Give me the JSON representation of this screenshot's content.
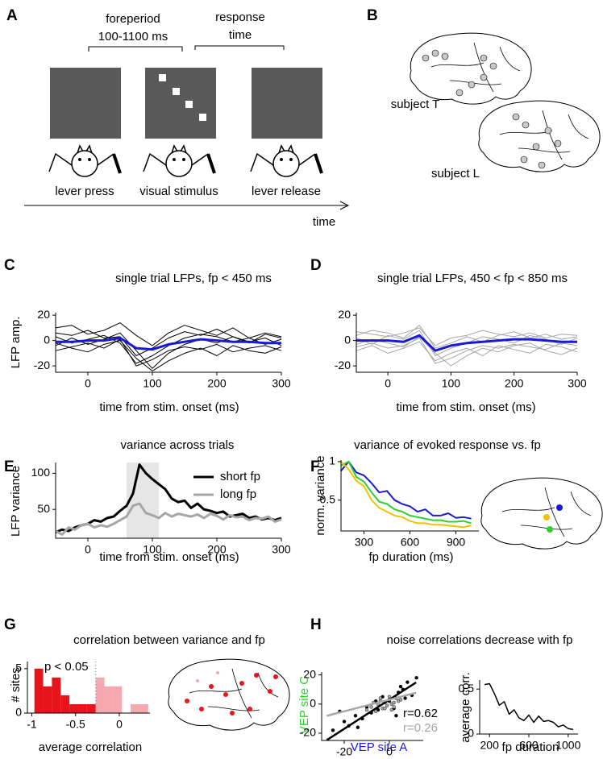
{
  "schematic": {
    "label": "A",
    "foreperiod": "foreperiod",
    "foreperiod_range": "100-1100 ms",
    "response_1": "response",
    "response_2": "time",
    "events": [
      "lever press",
      "visual stimulus",
      "lever release"
    ],
    "axis": "time"
  },
  "brain_maps": {
    "label": "B",
    "subjects": [
      "subject T",
      "subject L"
    ]
  },
  "chart_data": [
    {
      "type": "line",
      "label": "C",
      "title": "single trial LFPs, fp < 450 ms",
      "xlabel": "time from stim. onset (ms)",
      "ylabel": "LFP amp.",
      "x": [
        -50,
        -25,
        0,
        25,
        50,
        75,
        100,
        125,
        150,
        175,
        200,
        225,
        250,
        275,
        300
      ],
      "series": [
        {
          "color": "#000000",
          "width": 1,
          "values": [
            3,
            -2,
            1,
            4,
            -2,
            -18,
            -12,
            -4,
            2,
            5,
            3,
            -1,
            2,
            -3,
            1
          ]
        },
        {
          "color": "#000000",
          "width": 1,
          "values": [
            -4,
            2,
            -3,
            1,
            6,
            -8,
            -22,
            -10,
            -3,
            1,
            -2,
            3,
            -1,
            2,
            -4
          ]
        },
        {
          "color": "#000000",
          "width": 1,
          "values": [
            6,
            4,
            8,
            2,
            3,
            -12,
            -6,
            2,
            7,
            4,
            9,
            3,
            -2,
            5,
            2
          ]
        },
        {
          "color": "#000000",
          "width": 1,
          "values": [
            -8,
            -5,
            -2,
            -6,
            1,
            -20,
            -15,
            -8,
            -5,
            -7,
            -3,
            -9,
            -6,
            -4,
            -8
          ]
        },
        {
          "color": "#000000",
          "width": 1,
          "values": [
            10,
            12,
            5,
            8,
            14,
            4,
            -4,
            6,
            12,
            8,
            4,
            10,
            2,
            6,
            3
          ]
        },
        {
          "color": "#000000",
          "width": 1,
          "values": [
            -2,
            -6,
            -9,
            -3,
            0,
            -14,
            -24,
            -16,
            -10,
            -6,
            -12,
            -4,
            -8,
            -10,
            -5
          ]
        },
        {
          "color": "#1a1ad6",
          "width": 3,
          "values": [
            -1,
            -1,
            0,
            0,
            2,
            -6,
            -7,
            -3,
            -1,
            1,
            0,
            -1,
            -1,
            -2,
            -2
          ]
        }
      ],
      "xlim": [
        -50,
        300
      ],
      "ylim": [
        -25,
        22
      ],
      "xticks": [
        0,
        100,
        200,
        300
      ],
      "yticks": [
        -20,
        0,
        20
      ]
    },
    {
      "type": "line",
      "label": "D",
      "title": "single trial LFPs, 450 < fp < 850 ms",
      "xlabel": "time from stim. onset (ms)",
      "x": [
        -50,
        -25,
        0,
        25,
        50,
        75,
        100,
        125,
        150,
        175,
        200,
        225,
        250,
        275,
        300
      ],
      "series": [
        {
          "color": "#a6a6a6",
          "width": 1,
          "values": [
            2,
            -3,
            4,
            1,
            8,
            -12,
            -6,
            -2,
            3,
            1,
            -2,
            4,
            1,
            -3,
            2
          ]
        },
        {
          "color": "#a6a6a6",
          "width": 1,
          "values": [
            -5,
            -2,
            -6,
            -4,
            2,
            -18,
            -14,
            -8,
            -4,
            -6,
            -3,
            -5,
            -7,
            -2,
            -4
          ]
        },
        {
          "color": "#a6a6a6",
          "width": 1,
          "values": [
            7,
            5,
            3,
            6,
            10,
            -4,
            2,
            4,
            8,
            5,
            3,
            6,
            2,
            5,
            4
          ]
        },
        {
          "color": "#a6a6a6",
          "width": 1,
          "values": [
            -3,
            1,
            -2,
            -5,
            3,
            -10,
            -20,
            -12,
            -6,
            -9,
            -4,
            -2,
            -8,
            -11,
            -6
          ]
        },
        {
          "color": "#a6a6a6",
          "width": 1,
          "values": [
            4,
            8,
            6,
            2,
            12,
            -6,
            -2,
            3,
            -1,
            4,
            7,
            2,
            5,
            1,
            3
          ]
        },
        {
          "color": "#a6a6a6",
          "width": 1,
          "values": [
            -8,
            -4,
            -10,
            -6,
            -1,
            -16,
            -10,
            -6,
            -12,
            -4,
            -7,
            -10,
            -3,
            -5,
            -9
          ]
        },
        {
          "color": "#1a1ad6",
          "width": 3,
          "values": [
            0,
            0,
            0,
            -1,
            4,
            -8,
            -4,
            -2,
            -1,
            0,
            1,
            1,
            0,
            -1,
            -1
          ]
        }
      ],
      "xlim": [
        -50,
        300
      ],
      "ylim": [
        -25,
        22
      ],
      "xticks": [
        0,
        100,
        200,
        300
      ],
      "yticks": [
        -20,
        0,
        20
      ]
    },
    {
      "type": "line",
      "label": "E",
      "title": "variance across trials",
      "xlabel": "time from stim. onset (ms)",
      "ylabel": "LFP variance",
      "x": [
        -50,
        -40,
        -30,
        -20,
        -10,
        0,
        10,
        20,
        30,
        40,
        50,
        60,
        70,
        80,
        90,
        100,
        110,
        120,
        130,
        140,
        150,
        160,
        170,
        180,
        190,
        200,
        210,
        220,
        230,
        240,
        250,
        260,
        270,
        280,
        290,
        300
      ],
      "series": [
        {
          "name": "short fp",
          "color": "#000000",
          "width": 3,
          "values": [
            18,
            22,
            20,
            25,
            28,
            30,
            35,
            33,
            38,
            40,
            48,
            55,
            72,
            112,
            100,
            92,
            85,
            78,
            65,
            60,
            62,
            52,
            58,
            50,
            48,
            45,
            47,
            40,
            42,
            44,
            38,
            40,
            36,
            38,
            35,
            38
          ]
        },
        {
          "name": "long fp",
          "color": "#a6a6a6",
          "width": 3,
          "values": [
            20,
            15,
            25,
            22,
            28,
            30,
            25,
            28,
            26,
            30,
            35,
            40,
            55,
            58,
            45,
            42,
            38,
            45,
            40,
            44,
            42,
            40,
            43,
            38,
            44,
            41,
            36,
            42,
            39,
            40,
            35,
            38,
            37,
            40,
            33,
            36
          ]
        }
      ],
      "shade": [
        60,
        110
      ],
      "shade_color": "#e6e6e6",
      "xlim": [
        -50,
        300
      ],
      "ylim": [
        10,
        115
      ],
      "xticks": [
        0,
        100,
        200,
        300
      ],
      "yticks": [
        50,
        100
      ]
    },
    {
      "type": "line",
      "label": "F",
      "title": "variance of evoked response vs. fp",
      "xlabel": "fp duration (ms)",
      "ylabel": "norm. variance",
      "x": [
        150,
        200,
        250,
        300,
        350,
        400,
        450,
        500,
        550,
        600,
        650,
        700,
        750,
        800,
        850,
        900,
        950,
        1000
      ],
      "series": [
        {
          "color": "#1a1ad6",
          "width": 2,
          "values": [
            0.88,
            1,
            0.86,
            0.82,
            0.72,
            0.6,
            0.62,
            0.5,
            0.45,
            0.42,
            0.35,
            0.38,
            0.3,
            0.3,
            0.33,
            0.27,
            0.28,
            0.26
          ]
        },
        {
          "color": "#2ed02e",
          "width": 2,
          "values": [
            0.95,
            1,
            0.8,
            0.74,
            0.6,
            0.48,
            0.45,
            0.38,
            0.35,
            0.3,
            0.28,
            0.26,
            0.24,
            0.24,
            0.22,
            0.22,
            0.23,
            0.2
          ]
        },
        {
          "color": "#f2c200",
          "width": 2,
          "values": [
            1,
            0.9,
            0.75,
            0.68,
            0.5,
            0.4,
            0.35,
            0.3,
            0.28,
            0.23,
            0.2,
            0.2,
            0.18,
            0.18,
            0.17,
            0.16,
            0.15,
            0.17
          ]
        }
      ],
      "xlim": [
        150,
        1050
      ],
      "ylim": [
        0.1,
        1.02
      ],
      "xticks": [
        300,
        600,
        900
      ],
      "yticks": [
        0.5,
        1
      ]
    },
    {
      "type": "histogram",
      "label": "G",
      "title": "correlation between variance and fp",
      "xlabel": "average correlation",
      "ylabel": "# sites",
      "annotation": "p < 0.05",
      "bins": [
        -0.97,
        -0.87,
        -0.77,
        -0.67,
        -0.57,
        -0.47,
        -0.37,
        -0.27,
        -0.17,
        -0.07,
        0.03,
        0.13,
        0.23,
        0.33
      ],
      "values": [
        5,
        3,
        4,
        2,
        1,
        1,
        1,
        4,
        3,
        3,
        0,
        1,
        1
      ],
      "threshold": -0.27,
      "color": "#e8141b",
      "color_above": "#f5a9ae",
      "xlim": [
        -1.05,
        0.35
      ],
      "ylim": [
        0,
        5.8
      ],
      "xticks": [
        -1,
        -0.5,
        0
      ],
      "yticks": [
        0,
        5
      ]
    },
    {
      "type": "scatter",
      "label": "H",
      "title": "noise correlations decrease with fp",
      "xlabel": "VEP site A",
      "ylabel": "VEP site C",
      "xlabel_color": "#1a1ad6",
      "ylabel_color": "#2ed02e",
      "series": [
        {
          "color": "#000000",
          "annotation": "r=0.62",
          "fit": [
            1,
            3
          ],
          "x": [
            -25,
            -20,
            -18,
            -15,
            -12,
            -10,
            -8,
            -5,
            -3,
            0,
            2,
            4,
            5,
            7,
            8,
            10,
            12,
            -14,
            -6,
            3,
            6,
            -22
          ],
          "values": [
            -18,
            -12,
            -15,
            -8,
            -10,
            -2,
            -6,
            -4,
            5,
            2,
            -3,
            8,
            12,
            4,
            15,
            6,
            18,
            -16,
            2,
            -8,
            10,
            -5
          ]
        },
        {
          "color": "#a6a6a6",
          "annotation": "r=0.26",
          "fit": [
            0.4,
            3
          ],
          "x": [
            -10,
            -8,
            -6,
            -5,
            -4,
            -3,
            -2,
            -1,
            0,
            1,
            2,
            3,
            4,
            -7,
            -2,
            0,
            2,
            5,
            -4,
            1
          ],
          "values": [
            -4,
            -2,
            -5,
            0,
            2,
            -3,
            1,
            -1,
            3,
            0,
            -2,
            4,
            2,
            1,
            -3,
            5,
            1,
            3,
            4,
            -4
          ]
        }
      ],
      "xlim": [
        -30,
        15
      ],
      "ylim": [
        -25,
        22
      ],
      "xticks": [
        -20,
        0
      ],
      "yticks": [
        -20,
        0,
        20
      ]
    },
    {
      "type": "line",
      "xlabel": "fp duration",
      "ylabel": "average corr.",
      "x": [
        150,
        200,
        250,
        300,
        350,
        400,
        450,
        500,
        550,
        600,
        650,
        700,
        750,
        800,
        850,
        900,
        950,
        1000,
        1050
      ],
      "series": [
        {
          "color": "#000000",
          "width": 1.5,
          "values": [
            0.55,
            0.56,
            0.45,
            0.32,
            0.36,
            0.22,
            0.27,
            0.18,
            0.15,
            0.21,
            0.13,
            0.2,
            0.14,
            0.15,
            0.13,
            0.08,
            0.1,
            0.06,
            0.05
          ]
        }
      ],
      "xlim": [
        100,
        1100
      ],
      "ylim": [
        0,
        0.6
      ],
      "xticks": [
        200,
        600,
        1000
      ],
      "yticks": [
        0,
        0.5
      ]
    }
  ]
}
